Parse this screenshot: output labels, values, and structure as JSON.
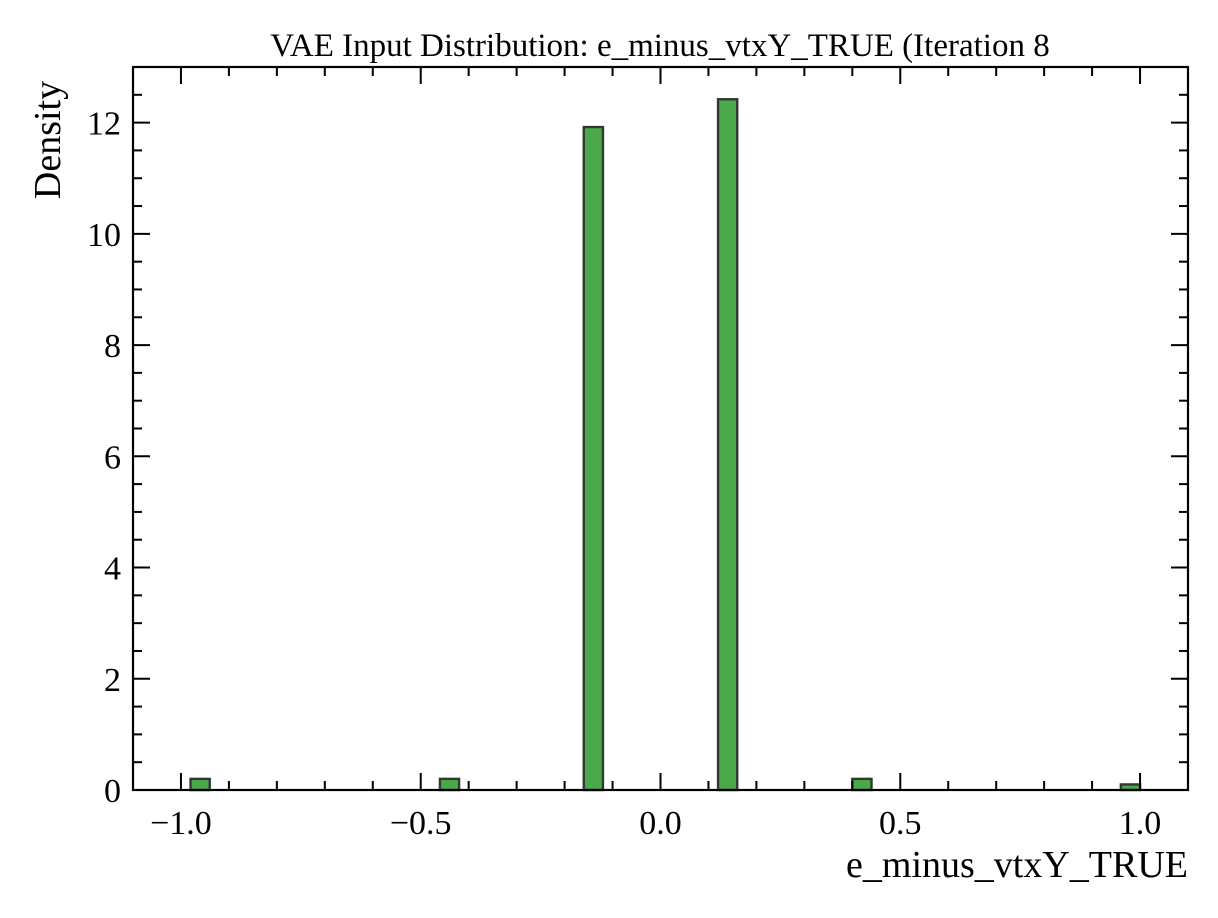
{
  "chart_data": {
    "type": "bar",
    "title": "VAE Input Distribution: e_minus_vtxY_TRUE (Iteration 8",
    "xlabel": "e_minus_vtxY_TRUE",
    "ylabel": "Density",
    "xlim": [
      -1.1,
      1.1
    ],
    "ylim": [
      0,
      13
    ],
    "xticks": [
      -1.0,
      -0.5,
      0.0,
      0.5,
      1.0
    ],
    "xtick_labels": [
      "−1.0",
      "−0.5",
      "0.0",
      "0.5",
      "1.0"
    ],
    "xminor_step": 0.1,
    "yticks": [
      0,
      2,
      4,
      6,
      8,
      10,
      12
    ],
    "ytick_labels": [
      "0",
      "2",
      "4",
      "6",
      "8",
      "10",
      "12"
    ],
    "yminor_step": 0.5,
    "grid": false,
    "bin_width": 0.04,
    "bins": [
      {
        "x_left": -0.98,
        "value": 0.2
      },
      {
        "x_left": -0.46,
        "value": 0.2
      },
      {
        "x_left": -0.16,
        "value": 11.92
      },
      {
        "x_left": 0.12,
        "value": 12.42
      },
      {
        "x_left": 0.4,
        "value": 0.2
      },
      {
        "x_left": 0.96,
        "value": 0.1
      }
    ],
    "colors": {
      "bar_fill": "#4ba84b",
      "bar_edge": "#2f3a2f",
      "axis": "#000000"
    }
  }
}
